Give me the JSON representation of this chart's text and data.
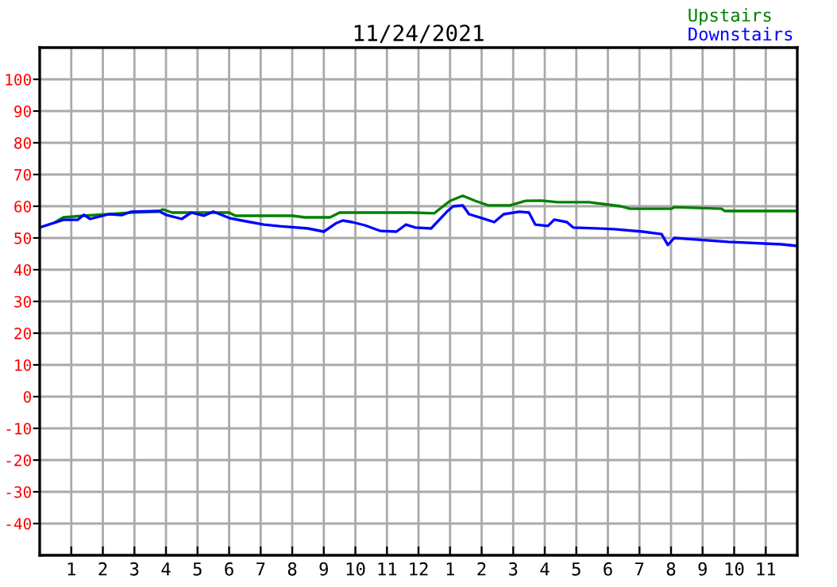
{
  "chart_data": {
    "type": "line",
    "title": "11/24/2021",
    "xlim": [
      "2021-11-24T00:00",
      "2021-11-25T00:00"
    ],
    "ylim": [
      -50,
      110
    ],
    "xticks": [
      {
        "value": "2021-11-24T01:00",
        "label": "1"
      },
      {
        "value": "2021-11-24T02:00",
        "label": "2"
      },
      {
        "value": "2021-11-24T03:00",
        "label": "3"
      },
      {
        "value": "2021-11-24T04:00",
        "label": "4"
      },
      {
        "value": "2021-11-24T05:00",
        "label": "5"
      },
      {
        "value": "2021-11-24T06:00",
        "label": "6"
      },
      {
        "value": "2021-11-24T07:00",
        "label": "7"
      },
      {
        "value": "2021-11-24T08:00",
        "label": "8"
      },
      {
        "value": "2021-11-24T09:00",
        "label": "9"
      },
      {
        "value": "2021-11-24T10:00",
        "label": "10"
      },
      {
        "value": "2021-11-24T11:00",
        "label": "11"
      },
      {
        "value": "2021-11-24T12:00",
        "label": "12"
      },
      {
        "value": "2021-11-24T13:00",
        "label": "1"
      },
      {
        "value": "2021-11-24T14:00",
        "label": "2"
      },
      {
        "value": "2021-11-24T15:00",
        "label": "3"
      },
      {
        "value": "2021-11-24T16:00",
        "label": "4"
      },
      {
        "value": "2021-11-24T17:00",
        "label": "5"
      },
      {
        "value": "2021-11-24T18:00",
        "label": "6"
      },
      {
        "value": "2021-11-24T19:00",
        "label": "7"
      },
      {
        "value": "2021-11-24T20:00",
        "label": "8"
      },
      {
        "value": "2021-11-24T21:00",
        "label": "9"
      },
      {
        "value": "2021-11-24T22:00",
        "label": "10"
      },
      {
        "value": "2021-11-24T23:00",
        "label": "11"
      }
    ],
    "yticks": [
      -40,
      -30,
      -20,
      -10,
      0,
      10,
      20,
      30,
      40,
      50,
      60,
      70,
      80,
      90,
      100
    ],
    "grid": true,
    "legend": "top right",
    "marker": "none",
    "line_style": "solid",
    "series": [
      {
        "name": "Upstairs",
        "color": "#008000",
        "x": [
          "2021-11-24T00:30",
          "2021-11-24T00:45",
          "2021-11-24T01:24",
          "2021-11-24T02:12",
          "2021-11-24T02:54",
          "2021-11-24T03:46",
          "2021-11-24T03:54",
          "2021-11-24T04:12",
          "2021-11-24T06:00",
          "2021-11-24T06:12",
          "2021-11-24T08:00",
          "2021-11-24T08:24",
          "2021-11-24T09:12",
          "2021-11-24T09:30",
          "2021-11-24T11:48",
          "2021-11-24T12:30",
          "2021-11-24T13:00",
          "2021-11-24T13:24",
          "2021-11-24T13:48",
          "2021-11-24T14:12",
          "2021-11-24T14:54",
          "2021-11-24T15:24",
          "2021-11-24T15:54",
          "2021-11-24T16:24",
          "2021-11-24T17:24",
          "2021-11-24T18:24",
          "2021-11-24T18:42",
          "2021-11-24T20:00",
          "2021-11-24T20:06",
          "2021-11-24T21:36",
          "2021-11-24T21:42",
          "2021-11-25T00:00"
        ],
        "values": [
          55,
          56.5,
          57,
          57.5,
          58,
          58.3,
          59,
          58,
          58,
          57,
          57,
          56.5,
          56.5,
          58,
          58,
          57.8,
          61.7,
          63.3,
          61.7,
          60.3,
          60.3,
          61.7,
          61.8,
          61.3,
          61.3,
          60,
          59.2,
          59.2,
          59.7,
          59.2,
          58.5,
          58.5
        ]
      },
      {
        "name": "Downstairs",
        "color": "#0000ff",
        "x": [
          "2021-11-24T00:00",
          "2021-11-24T00:45",
          "2021-11-24T01:12",
          "2021-11-24T01:24",
          "2021-11-24T01:36",
          "2021-11-24T02:12",
          "2021-11-24T02:36",
          "2021-11-24T02:54",
          "2021-11-24T03:46",
          "2021-11-24T04:00",
          "2021-11-24T04:30",
          "2021-11-24T04:48",
          "2021-11-24T05:12",
          "2021-11-24T05:30",
          "2021-11-24T06:00",
          "2021-11-24T06:24",
          "2021-11-24T07:06",
          "2021-11-24T07:36",
          "2021-11-24T08:30",
          "2021-11-24T09:00",
          "2021-11-24T09:24",
          "2021-11-24T09:36",
          "2021-11-24T09:54",
          "2021-11-24T10:18",
          "2021-11-24T10:48",
          "2021-11-24T11:18",
          "2021-11-24T11:36",
          "2021-11-24T11:54",
          "2021-11-24T12:24",
          "2021-11-24T12:54",
          "2021-11-24T13:06",
          "2021-11-24T13:24",
          "2021-11-24T13:36",
          "2021-11-24T14:00",
          "2021-11-24T14:24",
          "2021-11-24T14:42",
          "2021-11-24T15:12",
          "2021-11-24T15:30",
          "2021-11-24T15:42",
          "2021-11-24T16:06",
          "2021-11-24T16:18",
          "2021-11-24T16:42",
          "2021-11-24T16:54",
          "2021-11-24T18:12",
          "2021-11-24T19:06",
          "2021-11-24T19:42",
          "2021-11-24T19:54",
          "2021-11-24T20:06",
          "2021-11-24T20:30",
          "2021-11-24T21:48",
          "2021-11-24T23:30",
          "2021-11-25T00:00"
        ],
        "values": [
          53.3,
          55.7,
          55.7,
          57.3,
          56,
          57.5,
          57.2,
          58.3,
          58.5,
          57.3,
          56,
          58,
          57,
          58.3,
          56.3,
          55.5,
          54.2,
          53.7,
          53,
          52,
          54.7,
          55.5,
          55,
          54,
          52.2,
          52,
          54.2,
          53.3,
          53,
          58.3,
          60,
          60.3,
          57.5,
          56.3,
          55,
          57.5,
          58.3,
          58,
          54.2,
          53.8,
          55.8,
          55,
          53.3,
          52.8,
          52,
          51.2,
          47.8,
          50,
          49.7,
          48.8,
          48,
          47.5
        ]
      }
    ]
  }
}
